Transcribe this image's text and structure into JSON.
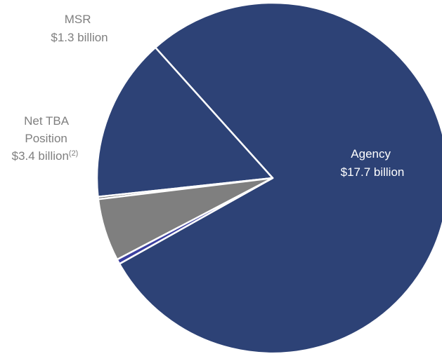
{
  "chart_data": {
    "type": "pie",
    "slices": [
      {
        "label_lines": [
          "Agency",
          "$17.7 billion"
        ],
        "value": 17.7,
        "color": "#2d4276",
        "label_color": "#ffffff",
        "label_placement": "inside"
      },
      {
        "label_lines": [
          "Net TBA",
          "Position",
          "$3.4 billion"
        ],
        "label_superscript": "(2)",
        "value": 3.4,
        "color": "#2d4276",
        "label_color": "#7f7f7f",
        "label_placement": "outside-left"
      },
      {
        "label_lines": [],
        "value": 0.05,
        "color": "#5a5a5a",
        "label_placement": "none"
      },
      {
        "label_lines": [
          "MSR",
          "$1.3 billion"
        ],
        "value": 1.3,
        "color": "#7f7f7f",
        "label_color": "#7f7f7f",
        "label_placement": "outside-top"
      },
      {
        "label_lines": [],
        "value": 0.1,
        "color": "#3b3fa0",
        "label_placement": "none"
      }
    ],
    "slice_separator_color": "#ffffff",
    "legend": "none"
  }
}
